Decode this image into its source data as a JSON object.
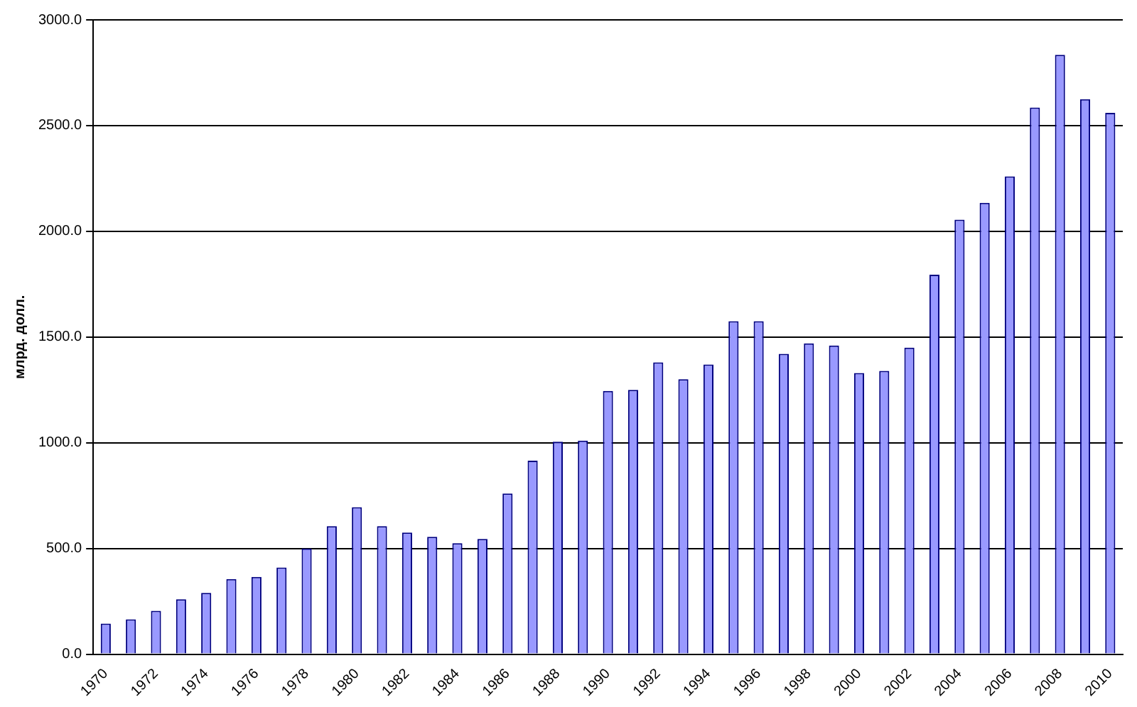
{
  "chart_data": {
    "type": "bar",
    "ylabel": "млрд. долл.",
    "categories": [
      "1970",
      null,
      "1972",
      null,
      "1974",
      null,
      "1976",
      null,
      "1978",
      null,
      "1980",
      null,
      "1982",
      null,
      "1984",
      null,
      "1986",
      null,
      "1988",
      null,
      "1990",
      null,
      "1992",
      null,
      "1994",
      null,
      "1996",
      null,
      "1998",
      null,
      "2000",
      null,
      "2002",
      null,
      "2004",
      null,
      "2006",
      null,
      "2008",
      null,
      "2010"
    ],
    "values": [
      145,
      165,
      205,
      260,
      290,
      355,
      365,
      410,
      500,
      605,
      695,
      605,
      575,
      555,
      525,
      545,
      760,
      915,
      1005,
      1010,
      1245,
      1250,
      1380,
      1300,
      1370,
      1575,
      1575,
      1420,
      1470,
      1460,
      1330,
      1340,
      1450,
      1795,
      2055,
      2135,
      2260,
      2585,
      2835,
      2625,
      2560
    ],
    "color": "#9999ff",
    "ylim": [
      0,
      3000
    ],
    "yticks": [
      {
        "value": 0,
        "label": "0.0"
      },
      {
        "value": 500,
        "label": "500.0"
      },
      {
        "value": 1000,
        "label": "1000.0"
      },
      {
        "value": 1500,
        "label": "1500.0"
      },
      {
        "value": 2000,
        "label": "2000.0"
      },
      {
        "value": 2500,
        "label": "2500.0"
      },
      {
        "value": 3000,
        "label": "3000.0"
      }
    ],
    "grid": "y",
    "legend": false
  }
}
